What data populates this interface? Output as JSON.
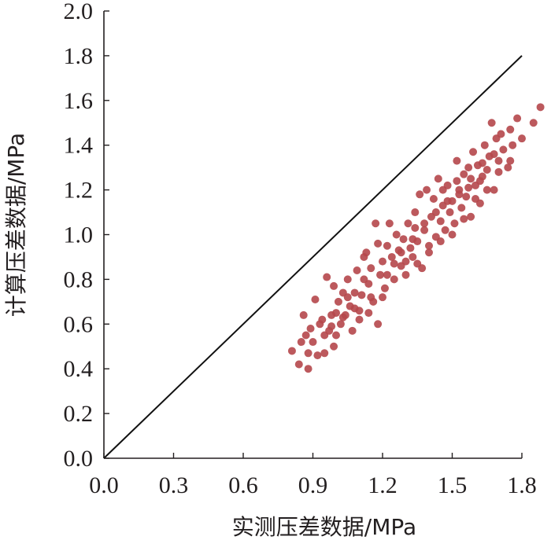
{
  "chart_data": {
    "type": "scatter",
    "xlabel": "实测压差数据/MPa",
    "ylabel": "计算压差数据/MPa",
    "xlim": [
      0.0,
      1.8
    ],
    "ylim": [
      0.0,
      2.0
    ],
    "x_ticks": [
      "0.0",
      "0.3",
      "0.6",
      "0.9",
      "1.2",
      "1.5",
      "1.8"
    ],
    "y_ticks": [
      "0.0",
      "0.2",
      "0.4",
      "0.6",
      "0.8",
      "1.0",
      "1.2",
      "1.4",
      "1.6",
      "1.8",
      "2.0"
    ],
    "grid": false,
    "reference_line": {
      "x": [
        0.0,
        1.8
      ],
      "y": [
        0.0,
        1.8
      ]
    },
    "point_color": "#b5474b",
    "line_color": "#111111",
    "points": [
      [
        0.81,
        0.48
      ],
      [
        0.84,
        0.42
      ],
      [
        0.85,
        0.52
      ],
      [
        0.86,
        0.64
      ],
      [
        0.87,
        0.55
      ],
      [
        0.88,
        0.47
      ],
      [
        0.89,
        0.58
      ],
      [
        0.9,
        0.52
      ],
      [
        0.91,
        0.71
      ],
      [
        0.92,
        0.46
      ],
      [
        0.93,
        0.6
      ],
      [
        0.94,
        0.62
      ],
      [
        0.95,
        0.55
      ],
      [
        0.96,
        0.81
      ],
      [
        0.97,
        0.57
      ],
      [
        0.98,
        0.64
      ],
      [
        0.99,
        0.77
      ],
      [
        1.0,
        0.65
      ],
      [
        1.01,
        0.7
      ],
      [
        1.02,
        0.6
      ],
      [
        0.99,
        0.5
      ],
      [
        1.03,
        0.74
      ],
      [
        1.04,
        0.64
      ],
      [
        1.05,
        0.8
      ],
      [
        1.06,
        0.68
      ],
      [
        1.07,
        0.57
      ],
      [
        1.08,
        0.74
      ],
      [
        1.09,
        0.84
      ],
      [
        1.1,
        0.66
      ],
      [
        1.11,
        0.73
      ],
      [
        1.12,
        0.9
      ],
      [
        1.13,
        0.92
      ],
      [
        1.14,
        0.78
      ],
      [
        1.15,
        0.85
      ],
      [
        1.16,
        0.7
      ],
      [
        1.17,
        1.05
      ],
      [
        1.18,
        0.6
      ],
      [
        1.18,
        0.96
      ],
      [
        1.19,
        0.82
      ],
      [
        1.2,
        0.88
      ],
      [
        1.21,
        0.76
      ],
      [
        1.22,
        0.95
      ],
      [
        1.23,
        1.05
      ],
      [
        1.24,
        0.9
      ],
      [
        1.25,
        0.8
      ],
      [
        1.26,
        1.0
      ],
      [
        1.27,
        0.93
      ],
      [
        1.28,
        0.86
      ],
      [
        1.29,
        0.98
      ],
      [
        1.3,
        0.88
      ],
      [
        1.31,
        1.05
      ],
      [
        1.32,
        0.94
      ],
      [
        1.33,
        0.9
      ],
      [
        1.34,
        1.1
      ],
      [
        1.35,
        0.97
      ],
      [
        1.36,
        1.18
      ],
      [
        1.37,
        0.85
      ],
      [
        1.38,
        1.02
      ],
      [
        1.39,
        1.2
      ],
      [
        1.4,
        0.95
      ],
      [
        1.41,
        1.08
      ],
      [
        1.42,
        1.16
      ],
      [
        1.43,
        0.99
      ],
      [
        1.44,
        1.25
      ],
      [
        1.45,
        1.06
      ],
      [
        1.46,
        1.13
      ],
      [
        1.47,
        1.02
      ],
      [
        1.48,
        1.22
      ],
      [
        1.49,
        1.1
      ],
      [
        1.5,
        1.15
      ],
      [
        1.51,
        1.05
      ],
      [
        1.52,
        1.33
      ],
      [
        1.53,
        1.2
      ],
      [
        1.54,
        1.12
      ],
      [
        1.55,
        1.27
      ],
      [
        1.56,
        1.17
      ],
      [
        1.57,
        1.3
      ],
      [
        1.58,
        1.08
      ],
      [
        1.59,
        1.37
      ],
      [
        1.6,
        1.22
      ],
      [
        1.61,
        1.31
      ],
      [
        1.62,
        1.14
      ],
      [
        1.63,
        1.26
      ],
      [
        1.64,
        1.4
      ],
      [
        1.65,
        1.29
      ],
      [
        1.66,
        1.35
      ],
      [
        1.67,
        1.5
      ],
      [
        1.68,
        1.2
      ],
      [
        1.69,
        1.43
      ],
      [
        1.7,
        1.33
      ],
      [
        1.71,
        1.45
      ],
      [
        1.72,
        1.38
      ],
      [
        1.74,
        1.3
      ],
      [
        1.75,
        1.47
      ],
      [
        1.76,
        1.4
      ],
      [
        1.78,
        1.52
      ],
      [
        1.8,
        1.43
      ],
      [
        1.85,
        1.5
      ],
      [
        1.88,
        1.57
      ],
      [
        0.88,
        0.4
      ],
      [
        0.95,
        0.47
      ],
      [
        1.0,
        0.55
      ],
      [
        1.05,
        0.72
      ],
      [
        1.1,
        0.62
      ],
      [
        1.14,
        0.65
      ],
      [
        1.2,
        0.72
      ],
      [
        1.25,
        0.87
      ],
      [
        1.3,
        0.82
      ],
      [
        1.35,
        0.87
      ],
      [
        1.4,
        0.92
      ],
      [
        1.45,
        0.97
      ],
      [
        1.5,
        1.0
      ],
      [
        1.55,
        1.07
      ],
      [
        1.6,
        1.16
      ],
      [
        1.65,
        1.2
      ],
      [
        1.7,
        1.28
      ],
      [
        1.75,
        1.33
      ],
      [
        1.22,
        0.82
      ],
      [
        1.28,
        0.92
      ],
      [
        1.33,
        0.98
      ],
      [
        1.38,
        1.05
      ],
      [
        1.43,
        1.1
      ],
      [
        1.48,
        1.15
      ],
      [
        1.53,
        1.18
      ],
      [
        1.58,
        1.25
      ],
      [
        1.63,
        1.32
      ],
      [
        1.68,
        1.36
      ],
      [
        1.15,
        0.72
      ],
      [
        1.12,
        0.8
      ],
      [
        1.08,
        0.67
      ],
      [
        1.03,
        0.63
      ],
      [
        0.98,
        0.59
      ],
      [
        1.34,
        1.03
      ],
      [
        1.46,
        1.2
      ],
      [
        1.52,
        1.24
      ],
      [
        1.57,
        1.21
      ],
      [
        1.62,
        1.24
      ]
    ]
  }
}
